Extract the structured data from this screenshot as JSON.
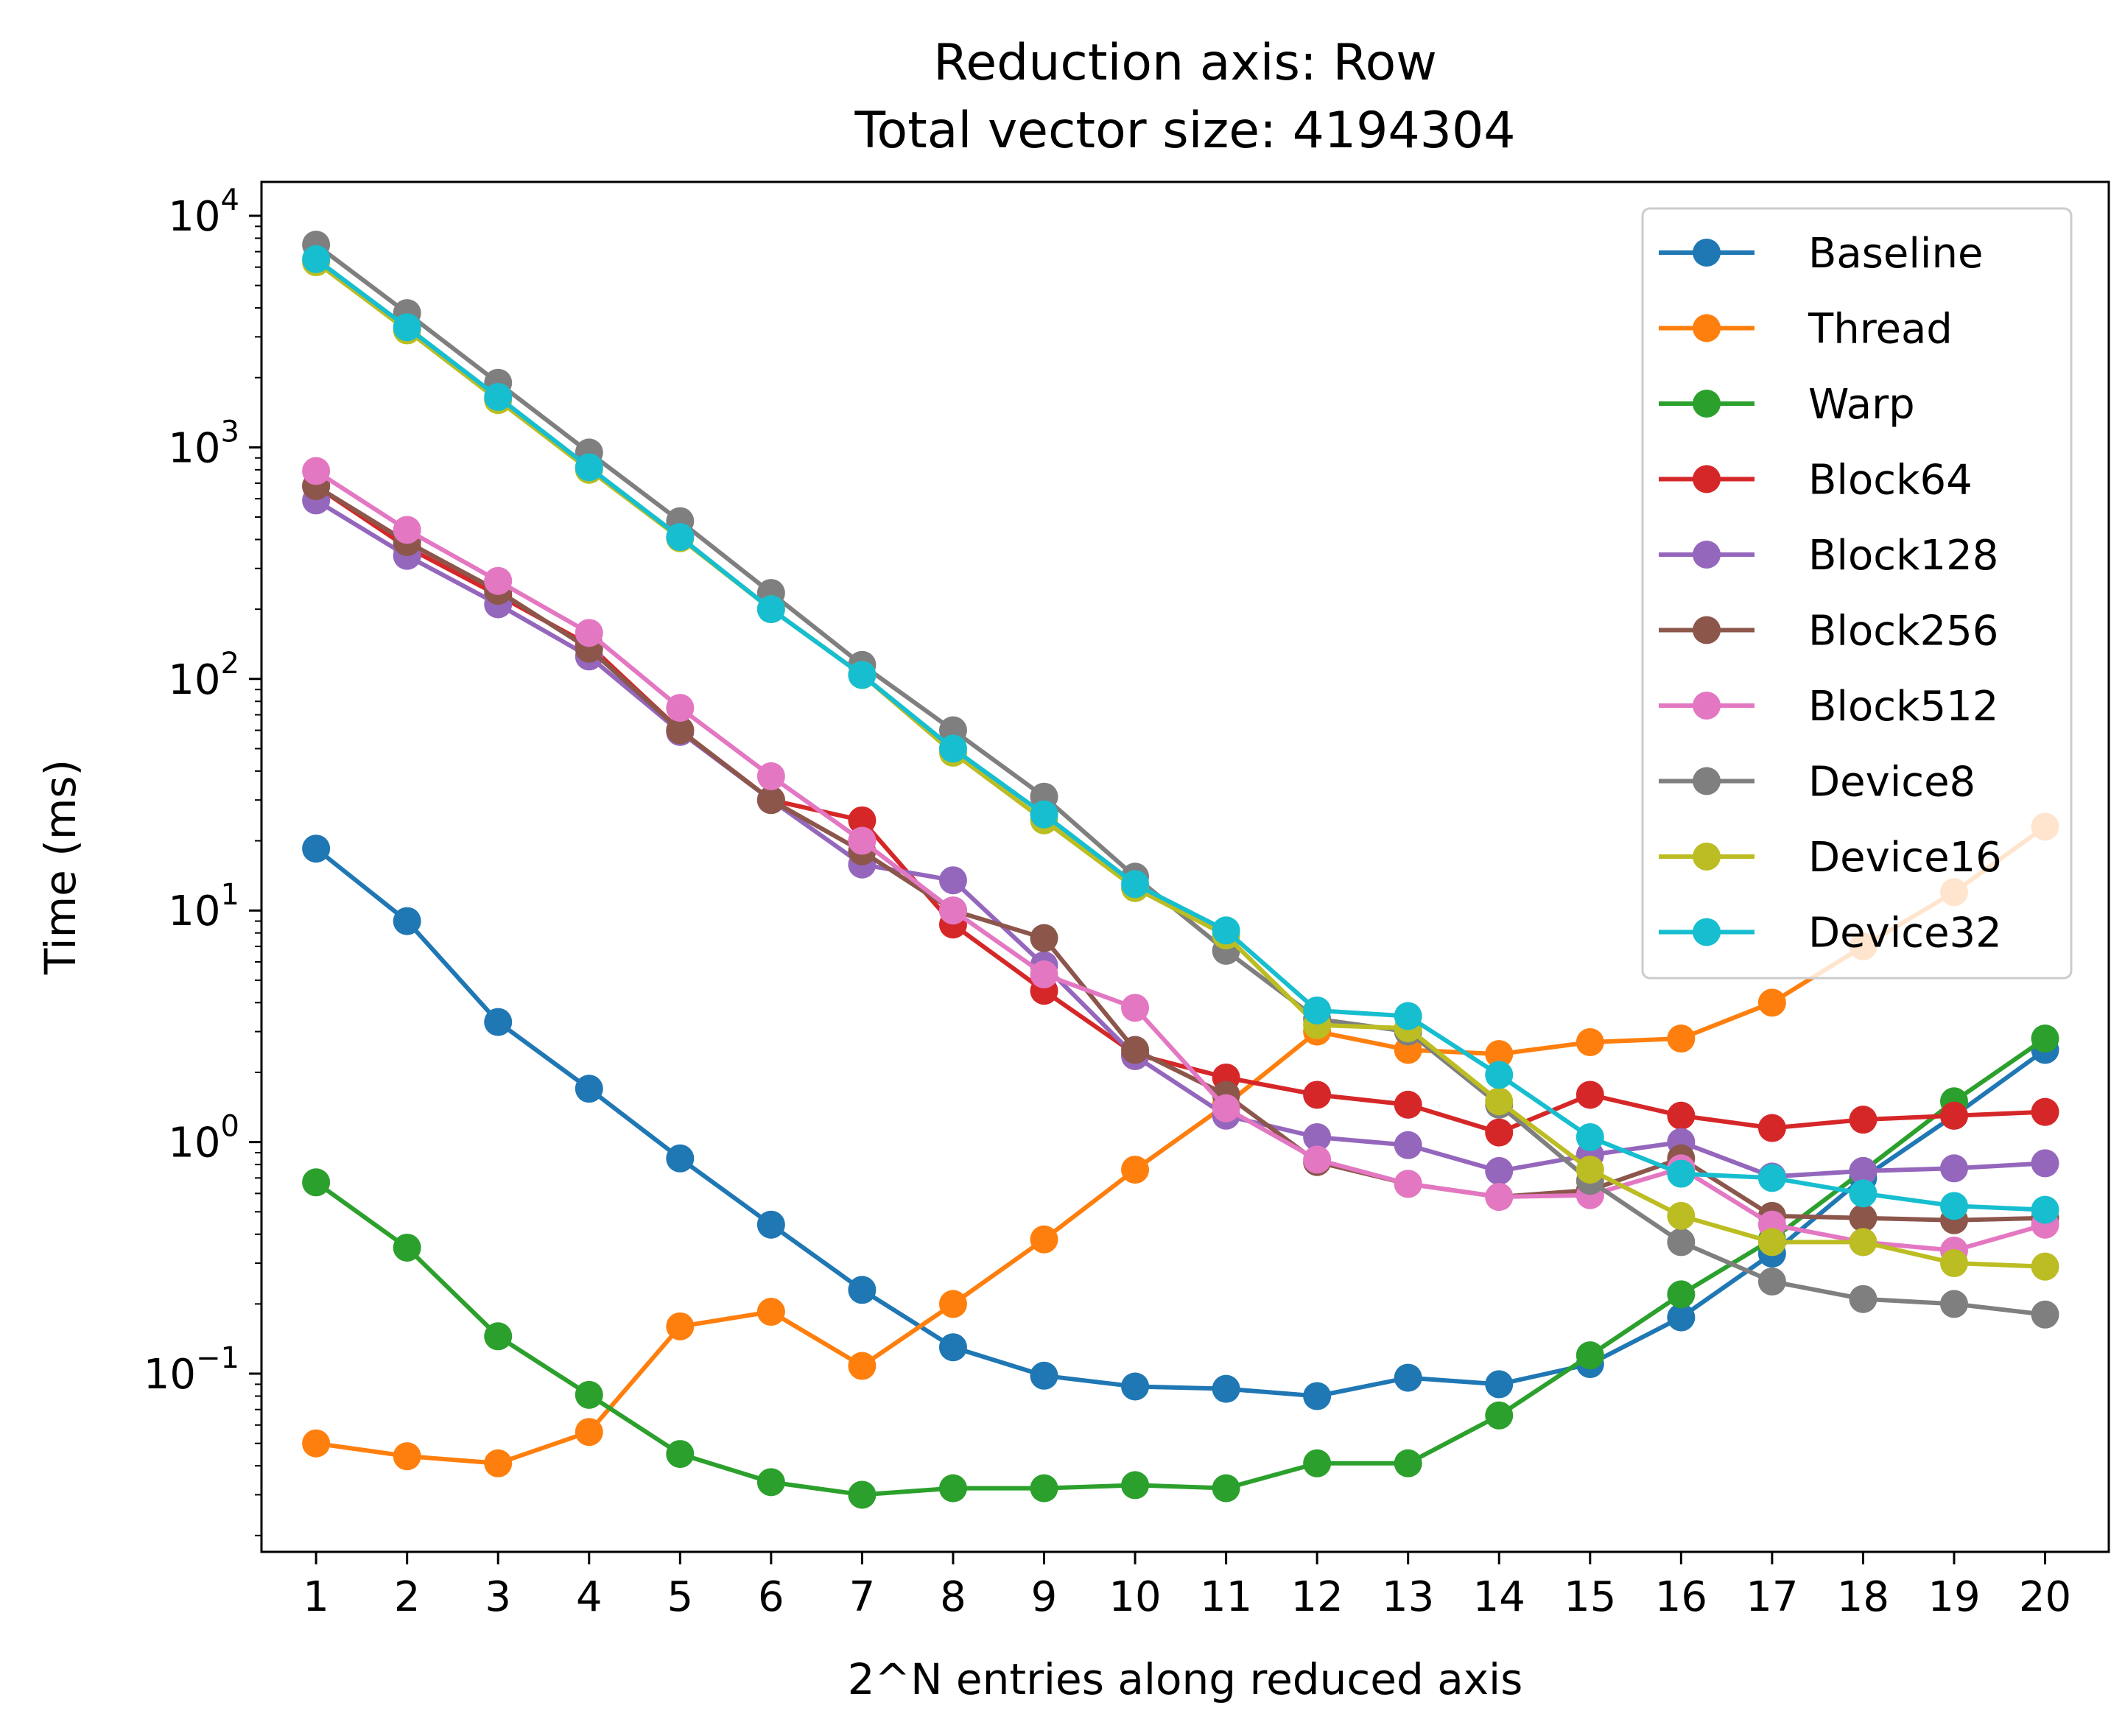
{
  "chart_data": {
    "type": "line",
    "title": "Reduction axis: Row",
    "subtitle": "Total vector size: 4194304",
    "xlabel": "2^N entries along reduced axis",
    "ylabel": "Time (ms)",
    "yscale": "log",
    "ylim": [
      0.017,
      14000
    ],
    "xlim": [
      0.4,
      20.7
    ],
    "x": [
      1,
      2,
      3,
      4,
      5,
      6,
      7,
      8,
      9,
      10,
      11,
      12,
      13,
      14,
      15,
      16,
      17,
      18,
      19,
      20
    ],
    "xticks": [
      "1",
      "2",
      "3",
      "4",
      "5",
      "6",
      "7",
      "8",
      "9",
      "10",
      "11",
      "12",
      "13",
      "14",
      "15",
      "16",
      "17",
      "18",
      "19",
      "20"
    ],
    "yticks": [
      {
        "value": 0.1,
        "base": "10",
        "exp": "−1"
      },
      {
        "value": 1,
        "base": "10",
        "exp": "0"
      },
      {
        "value": 10,
        "base": "10",
        "exp": "1"
      },
      {
        "value": 100,
        "base": "10",
        "exp": "2"
      },
      {
        "value": 1000,
        "base": "10",
        "exp": "3"
      },
      {
        "value": 10000,
        "base": "10",
        "exp": "4"
      }
    ],
    "grid": false,
    "legend_position": "top-right",
    "series": [
      {
        "name": "Baseline",
        "color": "#1f77b4",
        "values": [
          18.5,
          9,
          3.3,
          1.7,
          0.85,
          0.44,
          0.23,
          0.13,
          0.098,
          0.088,
          0.086,
          0.08,
          0.096,
          0.09,
          0.11,
          0.175,
          0.33,
          0.7,
          1.3,
          2.5
        ]
      },
      {
        "name": "Thread",
        "color": "#ff7f0e",
        "values": [
          0.05,
          0.044,
          0.041,
          0.056,
          0.16,
          0.185,
          0.108,
          0.2,
          0.38,
          0.76,
          1.45,
          3.0,
          2.5,
          2.4,
          2.7,
          2.8,
          4.0,
          7.0,
          12.0,
          23.0
        ]
      },
      {
        "name": "Warp",
        "color": "#2ca02c",
        "values": [
          0.67,
          0.35,
          0.145,
          0.081,
          0.045,
          0.034,
          0.03,
          0.032,
          0.032,
          0.033,
          0.032,
          0.041,
          0.041,
          0.066,
          0.12,
          0.22,
          0.38,
          0.75,
          1.5,
          2.8
        ]
      },
      {
        "name": "Block64",
        "color": "#d62728",
        "values": [
          680,
          370,
          230,
          140,
          60,
          30,
          24.5,
          8.7,
          4.5,
          2.4,
          1.9,
          1.6,
          1.45,
          1.1,
          1.6,
          1.3,
          1.15,
          1.25,
          1.3,
          1.35
        ]
      },
      {
        "name": "Block128",
        "color": "#9467bd",
        "values": [
          590,
          340,
          210,
          125,
          59,
          30,
          15.8,
          13.5,
          5.8,
          2.35,
          1.3,
          1.05,
          0.97,
          0.75,
          0.88,
          1.0,
          0.71,
          0.75,
          0.77,
          0.81
        ]
      },
      {
        "name": "Block256",
        "color": "#8c564b",
        "values": [
          680,
          390,
          240,
          135,
          60,
          30,
          18,
          10,
          7.6,
          2.5,
          1.6,
          0.82,
          0.66,
          0.58,
          0.62,
          0.85,
          0.48,
          0.47,
          0.46,
          0.47
        ]
      },
      {
        "name": "Block512",
        "color": "#e377c2",
        "values": [
          790,
          440,
          265,
          158,
          75,
          38,
          20,
          10,
          5.3,
          3.8,
          1.4,
          0.84,
          0.66,
          0.58,
          0.59,
          0.77,
          0.44,
          0.37,
          0.34,
          0.44
        ]
      },
      {
        "name": "Device8",
        "color": "#7f7f7f",
        "values": [
          7500,
          3800,
          1900,
          950,
          480,
          235,
          115,
          60,
          31,
          14,
          6.7,
          3.4,
          3.0,
          1.45,
          0.68,
          0.37,
          0.25,
          0.21,
          0.2,
          0.18
        ]
      },
      {
        "name": "Device16",
        "color": "#bcbd22",
        "values": [
          6300,
          3200,
          1600,
          800,
          405,
          200,
          104,
          48,
          24.5,
          12.5,
          7.8,
          3.2,
          3.1,
          1.5,
          0.76,
          0.48,
          0.37,
          0.37,
          0.3,
          0.29
        ]
      },
      {
        "name": "Device32",
        "color": "#17becf",
        "values": [
          6500,
          3300,
          1650,
          820,
          410,
          200,
          104,
          50,
          26,
          13,
          8.2,
          3.7,
          3.5,
          1.95,
          1.05,
          0.73,
          0.7,
          0.6,
          0.53,
          0.51
        ]
      }
    ]
  }
}
